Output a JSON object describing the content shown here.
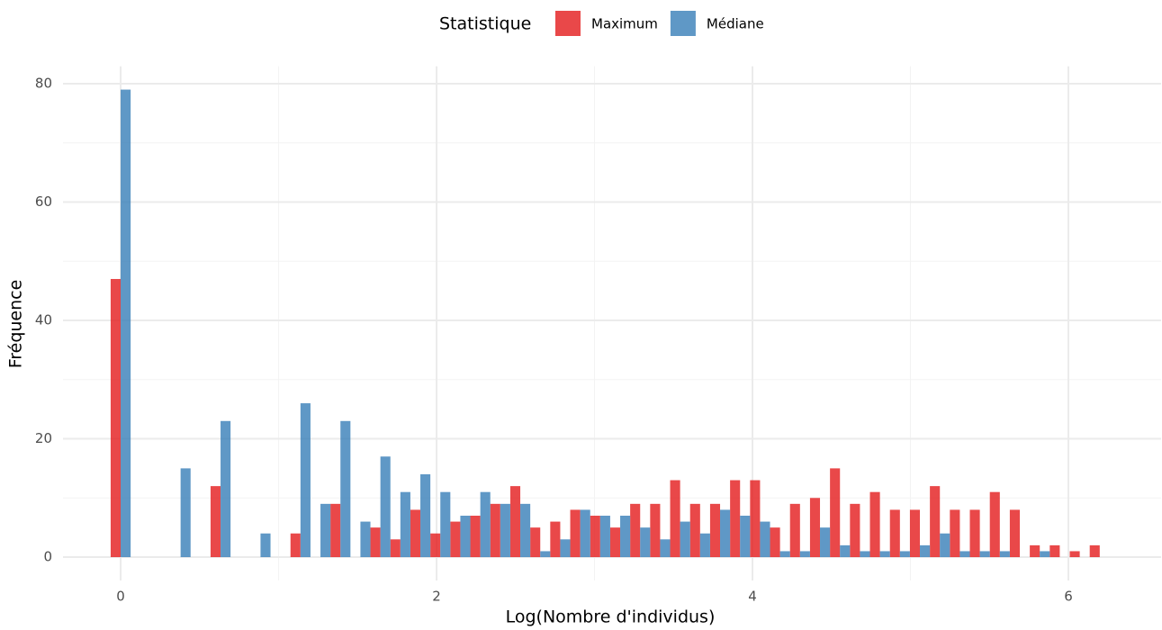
{
  "chart_data": {
    "type": "histogram",
    "legend_title": "Statistique",
    "x_label": "Log(Nombre d'individus)",
    "y_label": "Fréquence",
    "bins": [
      -0.0633,
      0.0632,
      0.1897,
      0.3162,
      0.4427,
      0.5692,
      0.6957,
      0.8222,
      0.9487,
      1.0752,
      1.2017,
      1.3282,
      1.4547,
      1.5812,
      1.7077,
      1.8342,
      1.9607,
      2.0872,
      2.2137,
      2.3402,
      2.4667,
      2.5932,
      2.7197,
      2.8462,
      2.9727,
      3.0992,
      3.2257,
      3.3522,
      3.4787,
      3.6052,
      3.7317,
      3.8582,
      3.9847,
      4.1112,
      4.2377,
      4.3642,
      4.4907,
      4.6172,
      4.7437,
      4.8702,
      4.9967,
      5.1232,
      5.2497,
      5.3762,
      5.5027,
      5.6292,
      5.7557,
      5.8822,
      6.0087,
      6.1352,
      6.2617
    ],
    "series": [
      {
        "name": "Maximum",
        "color": "#e41a1c",
        "values": [
          47,
          0,
          0,
          0,
          0,
          12,
          0,
          0,
          0,
          4,
          0,
          9,
          0,
          5,
          3,
          8,
          4,
          6,
          7,
          9,
          12,
          5,
          6,
          8,
          7,
          5,
          9,
          9,
          13,
          9,
          9,
          13,
          13,
          5,
          9,
          10,
          15,
          9,
          11,
          8,
          8,
          12,
          8,
          8,
          11,
          8,
          2,
          2,
          1,
          2
        ]
      },
      {
        "name": "Médiane",
        "color": "#377eb8",
        "values": [
          79,
          0,
          0,
          15,
          0,
          23,
          0,
          4,
          0,
          26,
          9,
          23,
          6,
          17,
          11,
          14,
          11,
          7,
          11,
          9,
          9,
          1,
          3,
          8,
          7,
          7,
          5,
          3,
          6,
          4,
          8,
          7,
          6,
          1,
          1,
          5,
          2,
          1,
          1,
          1,
          2,
          4,
          1,
          1,
          1,
          0,
          1,
          0,
          0,
          0
        ]
      }
    ],
    "xlim": [
      -0.365,
      6.587
    ],
    "ylim": [
      -3.95,
      82.95
    ],
    "xticks": [
      0,
      2,
      4,
      6
    ],
    "yticks": [
      0,
      20,
      40,
      60,
      80
    ],
    "grid": true,
    "opacity": 0.8,
    "legend_position": "top"
  }
}
